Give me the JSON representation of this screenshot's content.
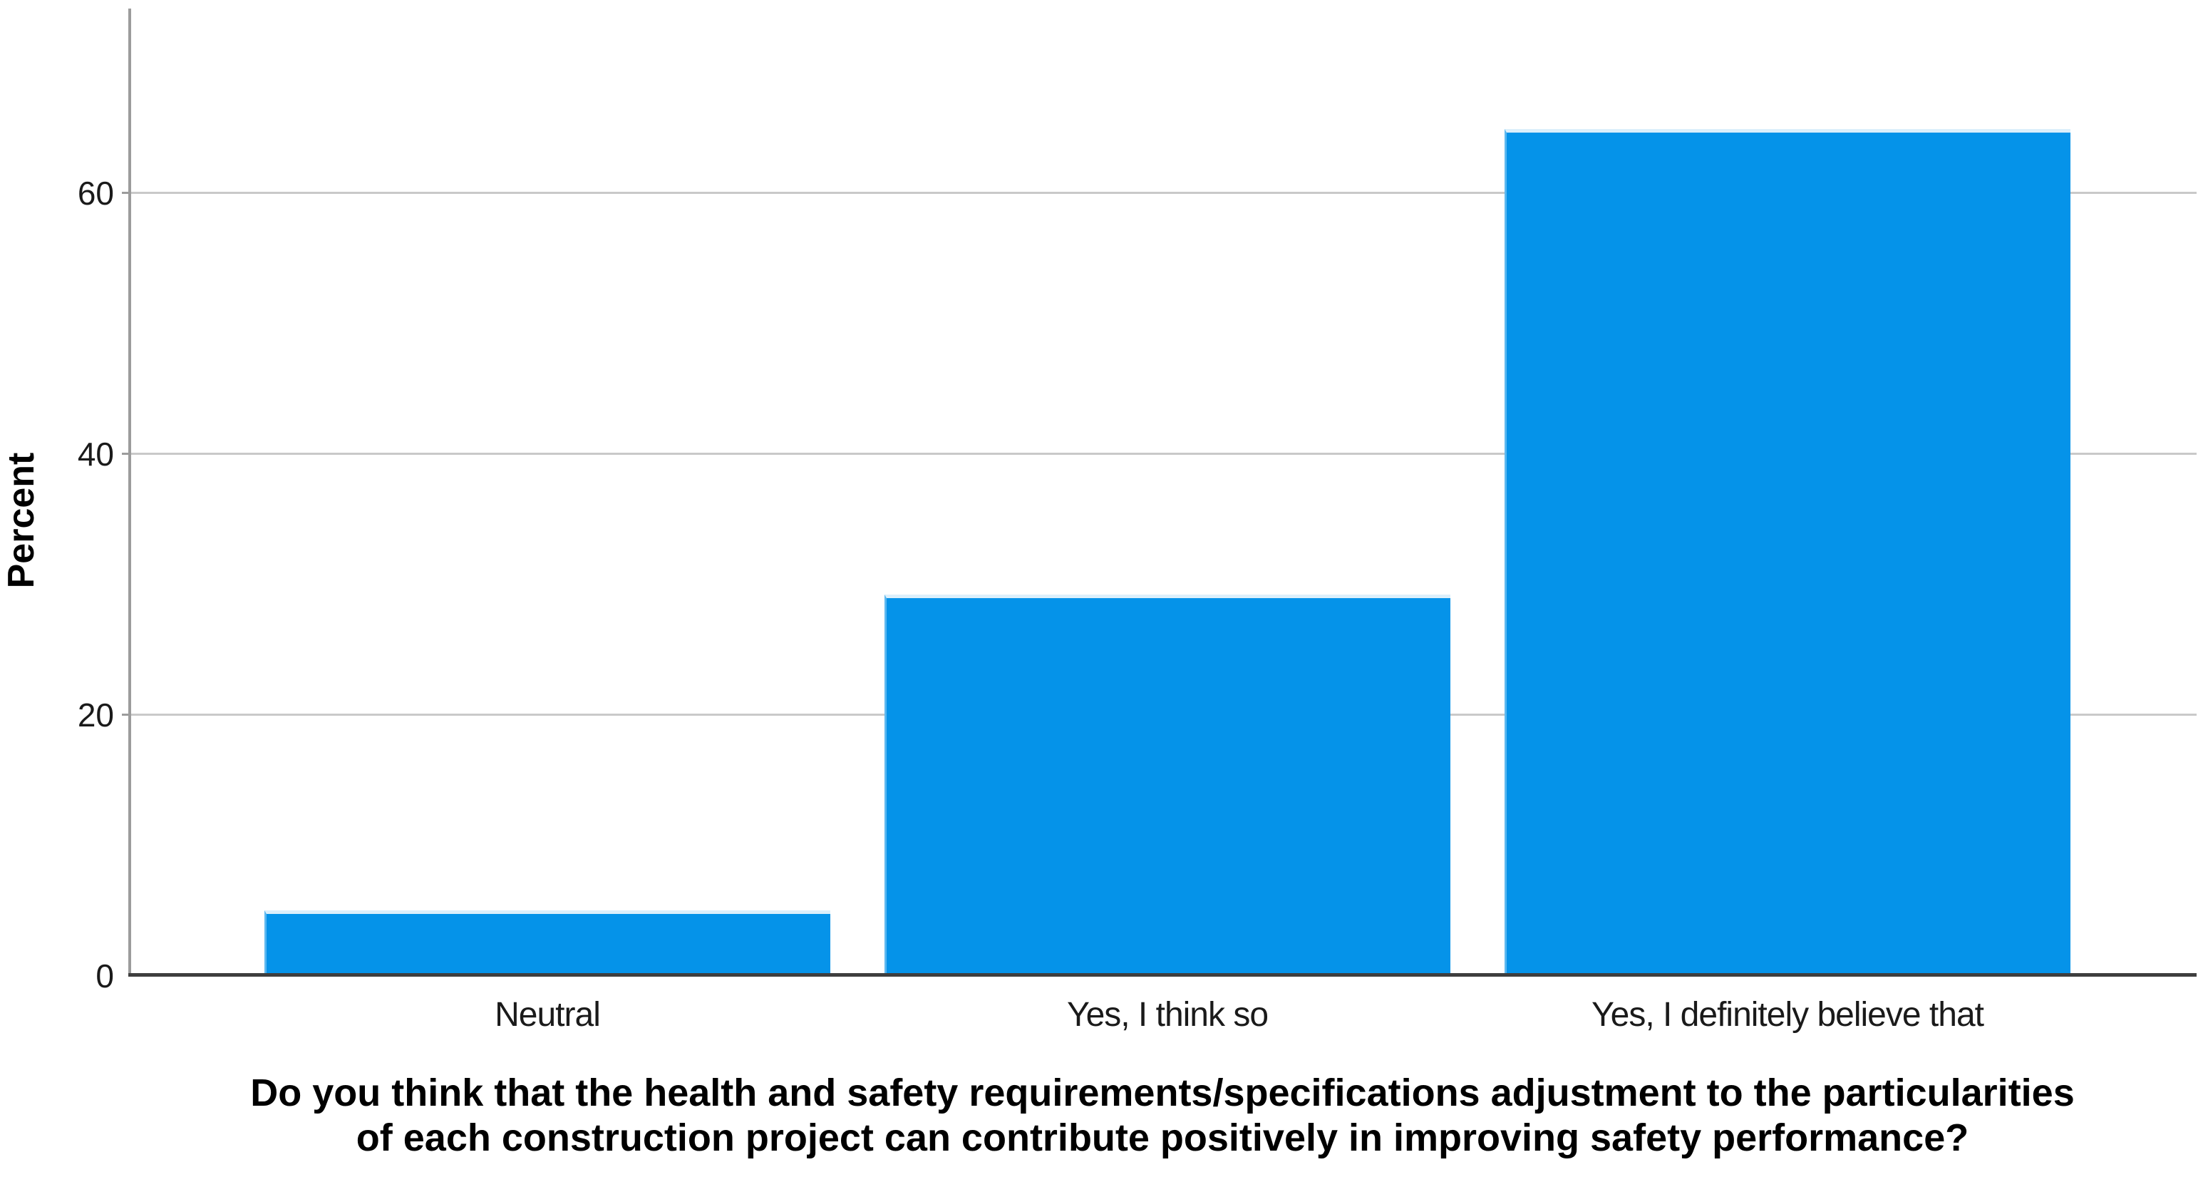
{
  "chart_data": {
    "type": "bar",
    "categories": [
      "Neutral",
      "Yes, I think so",
      "Yes, I definitely believe that"
    ],
    "values": [
      5.1,
      29.3,
      65.0
    ],
    "series": [
      {
        "name": "Percent",
        "values": [
          5.1,
          29.3,
          65.0
        ]
      }
    ],
    "title": "Do you think that the health and safety requirements/specifications adjustment to the particularities of each construction project can contribute positively in improving safety performance?",
    "title_lines": [
      "Do you think that the health and safety requirements/specifications adjustment to the particularities",
      "of each construction project can contribute positively in improving safety performance?"
    ],
    "xlabel": "",
    "ylabel": "Percent",
    "yticks": [
      0,
      20,
      40,
      60
    ],
    "ylim": [
      0,
      74.1
    ],
    "grid": "horizontal-only",
    "legend": "none",
    "bar_color": "#0593e9",
    "bar_edge_top_color": "#dceffb",
    "bar_edge_left_color": "#5cb8f0",
    "bar_edge_bottom_color": "#0a78b5",
    "gridline_color": "#c9c9c9",
    "yaxis_color": "#9c9c9c",
    "xaxis_color": "#3e3e3e",
    "text_color": "#000000"
  }
}
